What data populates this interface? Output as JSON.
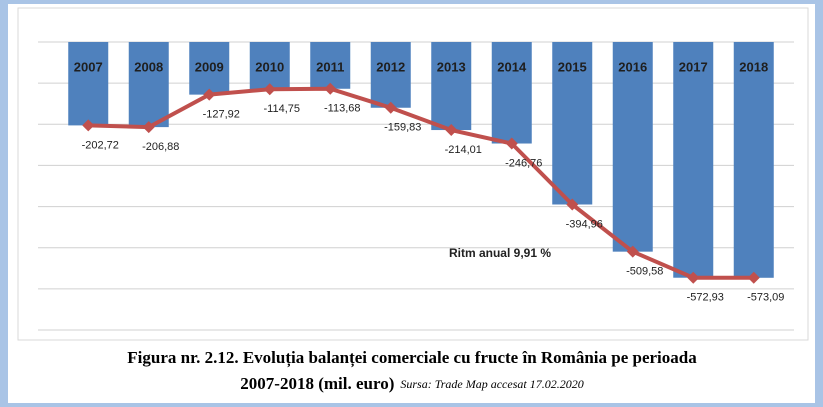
{
  "chart_data": {
    "type": "bar_line",
    "categories": [
      "2007",
      "2008",
      "2009",
      "2010",
      "2011",
      "2012",
      "2013",
      "2014",
      "2015",
      "2016",
      "2017",
      "2018"
    ],
    "values": [
      -202.72,
      -206.88,
      -127.92,
      -114.75,
      -113.68,
      -159.83,
      -214.01,
      -246.76,
      -394.96,
      -509.58,
      -572.93,
      -573.09
    ],
    "value_labels": [
      "-202,72",
      "-206,88",
      "-127,92",
      "-114,75",
      "-113,68",
      "-159,83",
      "-214,01",
      "-246,76",
      "-394,96",
      "-509,58",
      "-572,93",
      "-573,09"
    ],
    "bar_color": "#4f81bd",
    "line_color": "#c0504d",
    "ylim": [
      -700,
      0
    ],
    "yticks": [
      0,
      -100,
      -200,
      -300,
      -400,
      -500,
      -600,
      -700
    ],
    "grid": true,
    "annotation": "Ritm anual 9,91 %",
    "caption": {
      "line1": "Figura nr. 2.12. Evoluția balanței comerciale cu fructe în România pe perioada",
      "line2": "2007-2018  (mil. euro)",
      "source": "Sursa: Trade Map accesat 17.02.2020"
    }
  }
}
